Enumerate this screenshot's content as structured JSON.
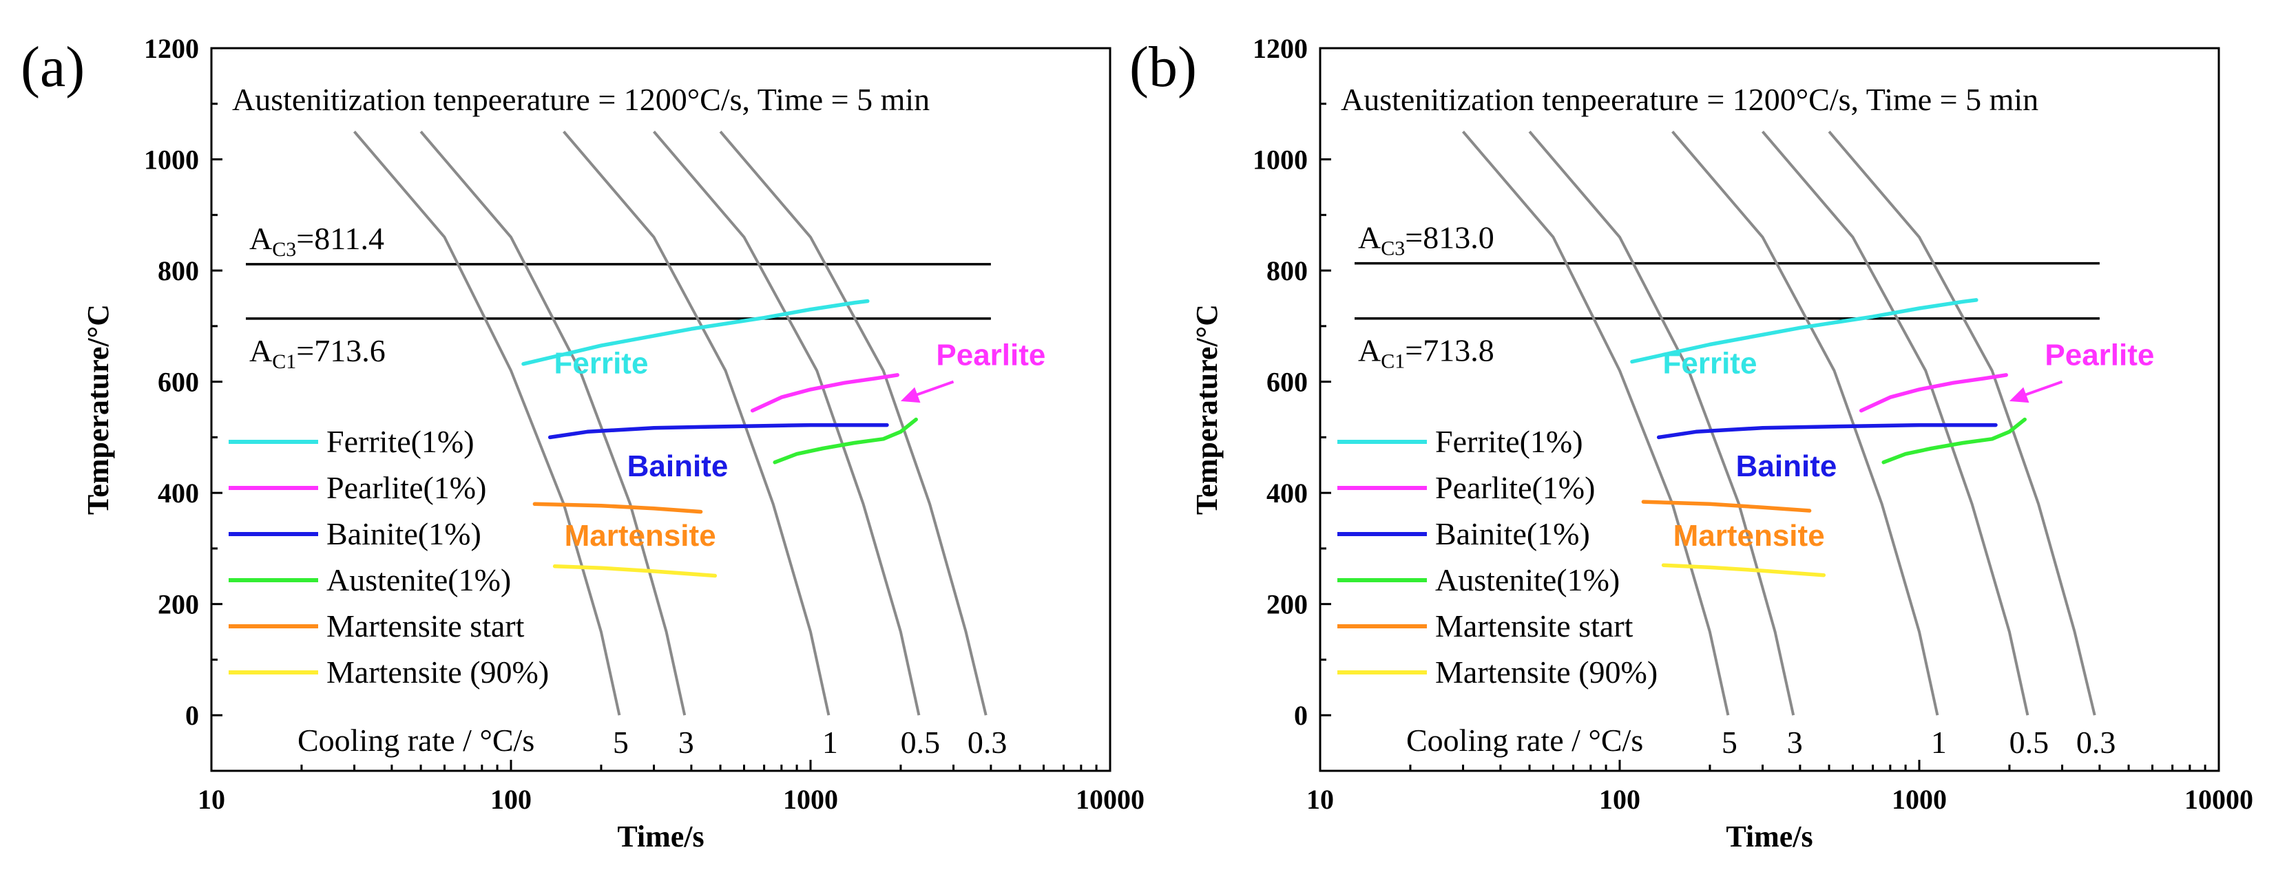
{
  "chart_data": [
    {
      "type": "line",
      "panel_label": "(a)",
      "title": "Austenitization tenpeeraturе = 1200°C/s, Time = 5 min",
      "xlabel": "Time/s",
      "ylabel": "Temperature/°C",
      "xscale": "log",
      "xlim": [
        10,
        10000
      ],
      "ylim": [
        -100,
        1200
      ],
      "xticks": [
        10,
        100,
        1000,
        10000
      ],
      "xtick_labels": [
        "10",
        "100",
        "1000",
        "10000"
      ],
      "yticks": [
        0,
        200,
        400,
        600,
        800,
        1000,
        1200
      ],
      "ytick_labels": [
        "0",
        "200",
        "400",
        "600",
        "800",
        "1000",
        "1200"
      ],
      "ac3": {
        "main": "A",
        "sub": "C3",
        "value_text": "=811.4",
        "value": 811.4
      },
      "ac1": {
        "main": "A",
        "sub": "C1",
        "value_text": "=713.6",
        "value": 713.6
      },
      "cooling_rate_label": "Cooling rate / °C/s",
      "cooling_curves": [
        {
          "rate": "5",
          "x": [
            30,
            60,
            100,
            150,
            200,
            230
          ],
          "y": [
            1050,
            860,
            620,
            380,
            150,
            0
          ]
        },
        {
          "rate": "3",
          "x": [
            50,
            100,
            170,
            250,
            330,
            380
          ],
          "y": [
            1050,
            860,
            620,
            380,
            150,
            0
          ]
        },
        {
          "rate": "1",
          "x": [
            150,
            300,
            520,
            750,
            1000,
            1150
          ],
          "y": [
            1050,
            860,
            620,
            380,
            150,
            0
          ]
        },
        {
          "rate": "0.5",
          "x": [
            300,
            600,
            1050,
            1500,
            2000,
            2300
          ],
          "y": [
            1050,
            860,
            620,
            380,
            150,
            0
          ]
        },
        {
          "rate": "0.3",
          "x": [
            500,
            1000,
            1750,
            2500,
            3300,
            3850
          ],
          "y": [
            1050,
            860,
            620,
            380,
            150,
            0
          ]
        }
      ],
      "series": [
        {
          "name": "Ferrite(1%)",
          "color": "#33e5e5",
          "x": [
            110,
            200,
            400,
            700,
            1000,
            1400,
            1550
          ],
          "y": [
            632,
            665,
            695,
            715,
            730,
            742,
            745
          ]
        },
        {
          "name": "Pearlite(1%)",
          "color": "#ff33ff",
          "x": [
            640,
            800,
            1000,
            1300,
            1650,
            1950
          ],
          "y": [
            548,
            572,
            586,
            598,
            606,
            612
          ]
        },
        {
          "name": "Bainite(1%)",
          "color": "#1a1ae6",
          "x": [
            135,
            180,
            300,
            600,
            1000,
            1500,
            1800
          ],
          "y": [
            500,
            510,
            517,
            520,
            522,
            522,
            522
          ]
        },
        {
          "name": "Austenite(1%)",
          "color": "#33ee33",
          "x": [
            760,
            900,
            1100,
            1400,
            1750,
            2000,
            2250
          ],
          "y": [
            455,
            470,
            480,
            490,
            497,
            510,
            532
          ]
        },
        {
          "name": "Martensite start",
          "color": "#ff8c1a",
          "x": [
            120,
            200,
            300,
            430
          ],
          "y": [
            380,
            377,
            372,
            366
          ]
        },
        {
          "name": "Martensite (90%)",
          "color": "#ffee33",
          "x": [
            140,
            200,
            300,
            480
          ],
          "y": [
            268,
            265,
            259,
            251
          ]
        }
      ],
      "phase_labels": {
        "ferrite": "Ferrite",
        "pearlite": "Pearlite",
        "bainite": "Bainite",
        "martensite": "Martensite"
      }
    },
    {
      "type": "line",
      "panel_label": "(b)",
      "title": "Austenitization tenpeeraturе = 1200°C/s, Time = 5 min",
      "xlabel": "Time/s",
      "ylabel": "Temperature/°C",
      "xscale": "log",
      "xlim": [
        10,
        10000
      ],
      "ylim": [
        -100,
        1200
      ],
      "xticks": [
        10,
        100,
        1000,
        10000
      ],
      "xtick_labels": [
        "10",
        "100",
        "1000",
        "10000"
      ],
      "yticks": [
        0,
        200,
        400,
        600,
        800,
        1000,
        1200
      ],
      "ytick_labels": [
        "0",
        "200",
        "400",
        "600",
        "800",
        "1000",
        "1200"
      ],
      "ac3": {
        "main": "A",
        "sub": "C3",
        "value_text": "=813.0",
        "value": 813.0
      },
      "ac1": {
        "main": "A",
        "sub": "C1",
        "value_text": "=713.8",
        "value": 713.8
      },
      "cooling_rate_label": "Cooling rate / °C/s",
      "cooling_curves": [
        {
          "rate": "5",
          "x": [
            30,
            60,
            100,
            150,
            200,
            230
          ],
          "y": [
            1050,
            860,
            620,
            380,
            150,
            0
          ]
        },
        {
          "rate": "3",
          "x": [
            50,
            100,
            170,
            250,
            330,
            380
          ],
          "y": [
            1050,
            860,
            620,
            380,
            150,
            0
          ]
        },
        {
          "rate": "1",
          "x": [
            150,
            300,
            520,
            750,
            1000,
            1150
          ],
          "y": [
            1050,
            860,
            620,
            380,
            150,
            0
          ]
        },
        {
          "rate": "0.5",
          "x": [
            300,
            600,
            1050,
            1500,
            2000,
            2300
          ],
          "y": [
            1050,
            860,
            620,
            380,
            150,
            0
          ]
        },
        {
          "rate": "0.3",
          "x": [
            500,
            1000,
            1750,
            2500,
            3300,
            3850
          ],
          "y": [
            1050,
            860,
            620,
            380,
            150,
            0
          ]
        }
      ],
      "series": [
        {
          "name": "Ferrite(1%)",
          "color": "#33e5e5",
          "x": [
            110,
            200,
            400,
            700,
            1000,
            1400,
            1550
          ],
          "y": [
            636,
            667,
            697,
            717,
            732,
            744,
            747
          ]
        },
        {
          "name": "Pearlite(1%)",
          "color": "#ff33ff",
          "x": [
            640,
            800,
            1000,
            1300,
            1650,
            1950
          ],
          "y": [
            548,
            572,
            586,
            598,
            606,
            612
          ]
        },
        {
          "name": "Bainite(1%)",
          "color": "#1a1ae6",
          "x": [
            135,
            180,
            300,
            600,
            1000,
            1500,
            1800
          ],
          "y": [
            500,
            510,
            517,
            520,
            522,
            522,
            522
          ]
        },
        {
          "name": "Austenite(1%)",
          "color": "#33ee33",
          "x": [
            760,
            900,
            1100,
            1400,
            1750,
            2000,
            2250
          ],
          "y": [
            455,
            470,
            480,
            490,
            497,
            510,
            532
          ]
        },
        {
          "name": "Martensite start",
          "color": "#ff8c1a",
          "x": [
            120,
            200,
            300,
            430
          ],
          "y": [
            384,
            380,
            374,
            368
          ]
        },
        {
          "name": "Martensite (90%)",
          "color": "#ffee33",
          "x": [
            140,
            200,
            300,
            480
          ],
          "y": [
            270,
            266,
            260,
            252
          ]
        }
      ],
      "phase_labels": {
        "ferrite": "Ferrite",
        "pearlite": "Pearlite",
        "bainite": "Bainite",
        "martensite": "Martensite"
      }
    }
  ]
}
